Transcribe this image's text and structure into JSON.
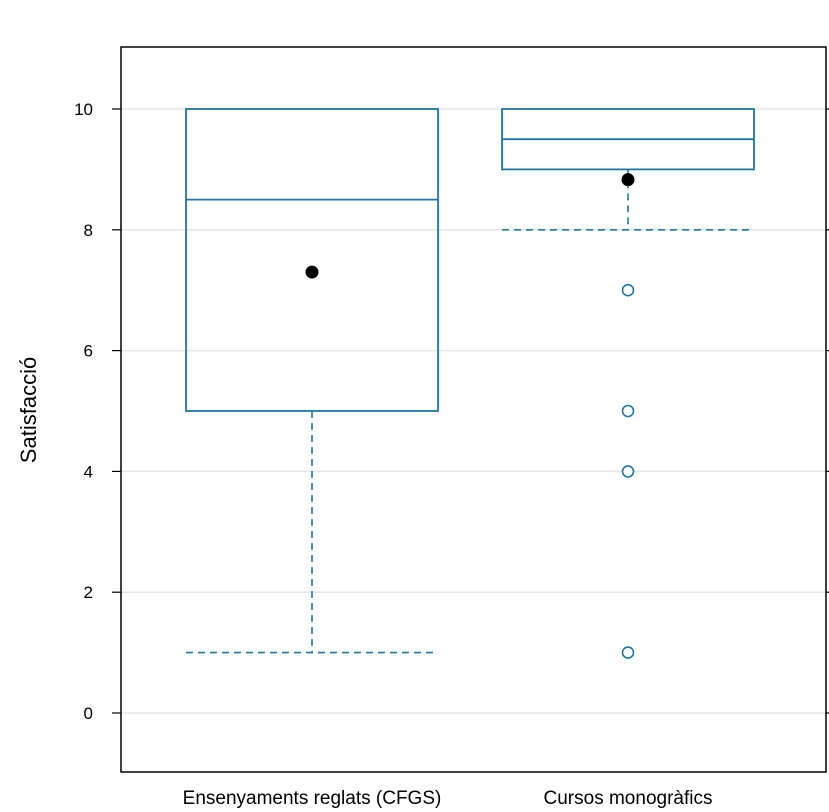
{
  "chart_data": {
    "type": "boxplot",
    "ylabel": "Satisfacció",
    "ylim": [
      -1,
      11
    ],
    "y_ticks": [
      0,
      2,
      4,
      6,
      8,
      10
    ],
    "grid": "horizontal",
    "colors": {
      "box": "#1f77a4",
      "mean": "#000000",
      "grid": "#e6e6e6",
      "frame": "#000000"
    },
    "categories": [
      "Ensenyaments reglats (CFGS)",
      "Cursos monogràfics"
    ],
    "boxes": [
      {
        "category": "Ensenyaments reglats (CFGS)",
        "whisker_low": 1,
        "q1": 5,
        "median": 8.5,
        "q3": 10,
        "whisker_high": 10,
        "mean": 7.3,
        "outliers": []
      },
      {
        "category": "Cursos monogràfics",
        "whisker_low": 8,
        "q1": 9,
        "median": 9.5,
        "q3": 10,
        "whisker_high": 10,
        "mean": 8.83,
        "outliers": [
          7,
          5,
          4,
          1
        ]
      }
    ]
  }
}
